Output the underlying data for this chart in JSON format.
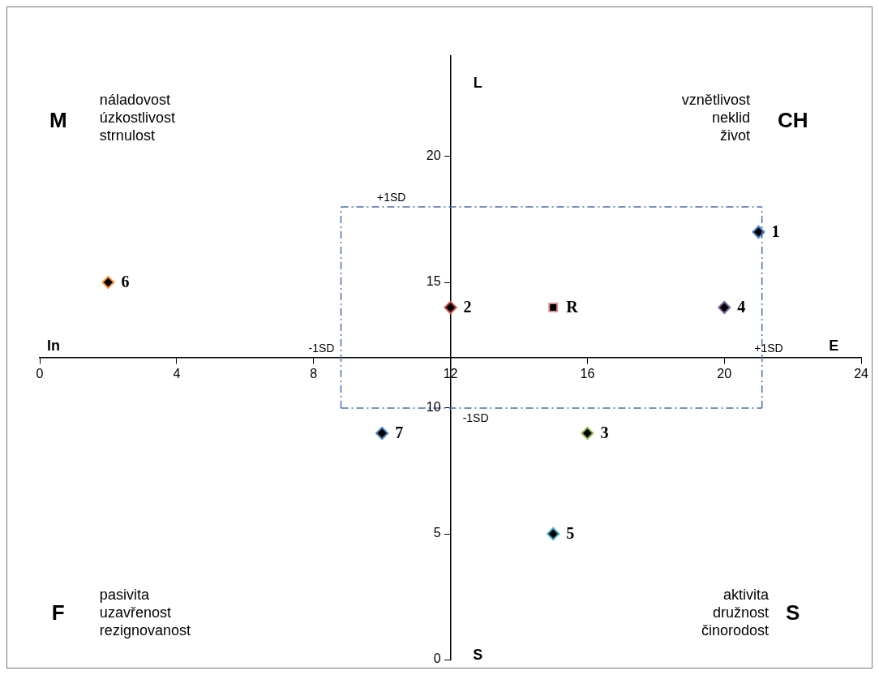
{
  "chart_data": {
    "type": "scatter",
    "marker": "diamond",
    "grid": false,
    "legend": false,
    "xlim": [
      0,
      24
    ],
    "xticks": [
      0,
      4,
      8,
      12,
      16,
      20,
      24
    ],
    "ylim": [
      0,
      24
    ],
    "yticks": [
      0,
      5,
      10,
      15,
      20
    ],
    "series": [
      {
        "name": "1",
        "color": "#4f81bd",
        "x": [
          21
        ],
        "values": [
          17
        ]
      },
      {
        "name": "2",
        "color": "#c0504d",
        "x": [
          12
        ],
        "values": [
          14
        ]
      },
      {
        "name": "R",
        "color": "#d99694",
        "x": [
          15
        ],
        "values": [
          14
        ],
        "marker": "square"
      },
      {
        "name": "4",
        "color": "#8064a2",
        "x": [
          20
        ],
        "values": [
          14
        ]
      },
      {
        "name": "6",
        "color": "#f79646",
        "x": [
          2
        ],
        "values": [
          15
        ]
      },
      {
        "name": "7",
        "color": "#4f81bd",
        "x": [
          10
        ],
        "values": [
          9
        ]
      },
      {
        "name": "3",
        "color": "#9bbb59",
        "x": [
          16
        ],
        "values": [
          9
        ]
      },
      {
        "name": "5",
        "color": "#4bacc6",
        "x": [
          15
        ],
        "values": [
          5
        ]
      }
    ],
    "ref_lines": [
      {
        "axis": "x",
        "value": 8.8,
        "label": "-1SD",
        "color": "#4a6fa5",
        "line_style": "dashed"
      },
      {
        "axis": "x",
        "value": 21.1,
        "label": "+1SD",
        "color": "#4a6fa5",
        "line_style": "dashed"
      },
      {
        "axis": "y",
        "value": 18,
        "label": "+1SD",
        "color": "#4a6fa5",
        "line_style": "dashed"
      },
      {
        "axis": "y",
        "value": 10,
        "label": "-1SD",
        "color": "#4a6fa5",
        "line_style": "dashed"
      }
    ],
    "annotations": [
      "M",
      "náladovost\núzkostlivost\nstrnulost",
      "CH",
      "vznětlivost\nneklid\nživot",
      "F",
      "pasivita\nuzavřenost\nrezignovanost",
      "S",
      "aktivita\ndružnost\nčinorodost",
      "L",
      "S",
      "In",
      "E"
    ]
  }
}
